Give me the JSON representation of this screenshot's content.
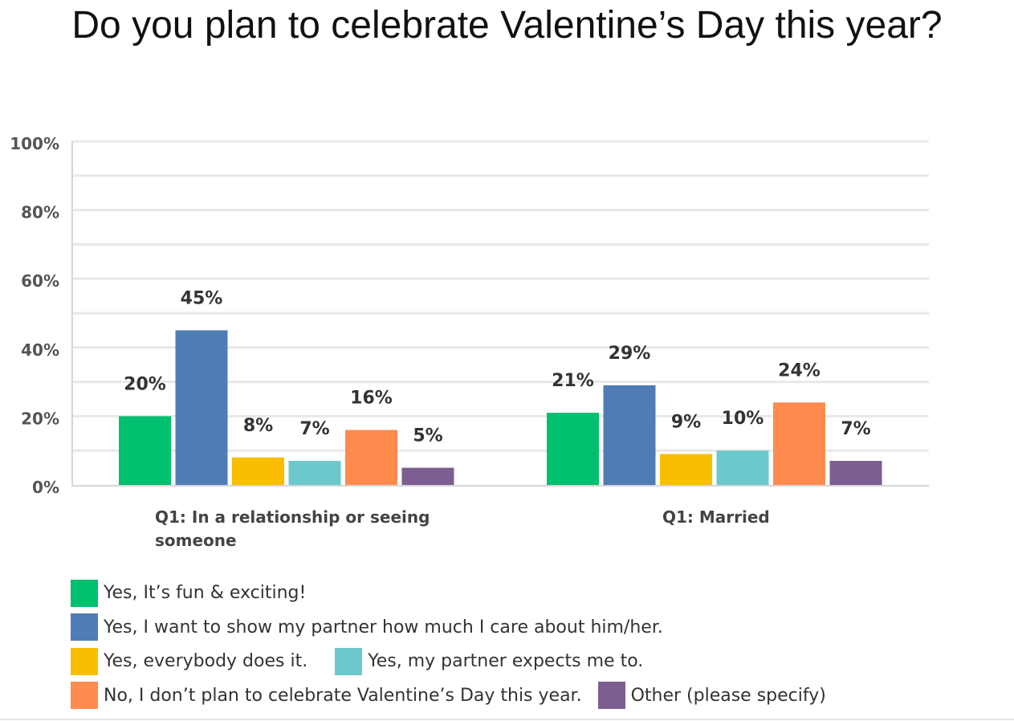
{
  "title": "Do you plan to celebrate Valentine’s Day this year?",
  "chart_data": {
    "type": "bar",
    "title": "Do you plan to celebrate Valentine’s Day this year?",
    "ylim": [
      0,
      100
    ],
    "y_ticks": [
      "0%",
      "20%",
      "40%",
      "60%",
      "80%",
      "100%"
    ],
    "grid": true,
    "legend_position": "bottom",
    "categories": [
      "Q1: In a relationship or seeing someone",
      "Q1: Married"
    ],
    "series": [
      {
        "name": "Yes, It’s fun & exciting!",
        "color": "#00bf6f",
        "values": [
          20,
          21
        ],
        "labels": [
          "20%",
          "21%"
        ]
      },
      {
        "name": "Yes, I want to show my partner how much I care about him/her.",
        "color": "#507cb6",
        "values": [
          45,
          29
        ],
        "labels": [
          "45%",
          "29%"
        ]
      },
      {
        "name": "Yes, everybody does it.",
        "color": "#f9be00",
        "values": [
          8,
          9
        ],
        "labels": [
          "8%",
          "9%"
        ]
      },
      {
        "name": "Yes, my partner expects me to.",
        "color": "#6bc8cd",
        "values": [
          7,
          10
        ],
        "labels": [
          "7%",
          "10%"
        ]
      },
      {
        "name": "No, I don’t plan to celebrate Valentine’s Day this year.",
        "color": "#ff8b4f",
        "values": [
          16,
          24
        ],
        "labels": [
          "16%",
          "24%"
        ]
      },
      {
        "name": "Other (please specify)",
        "color": "#7d5e90",
        "values": [
          5,
          7
        ],
        "labels": [
          "5%",
          "7%"
        ]
      }
    ]
  }
}
